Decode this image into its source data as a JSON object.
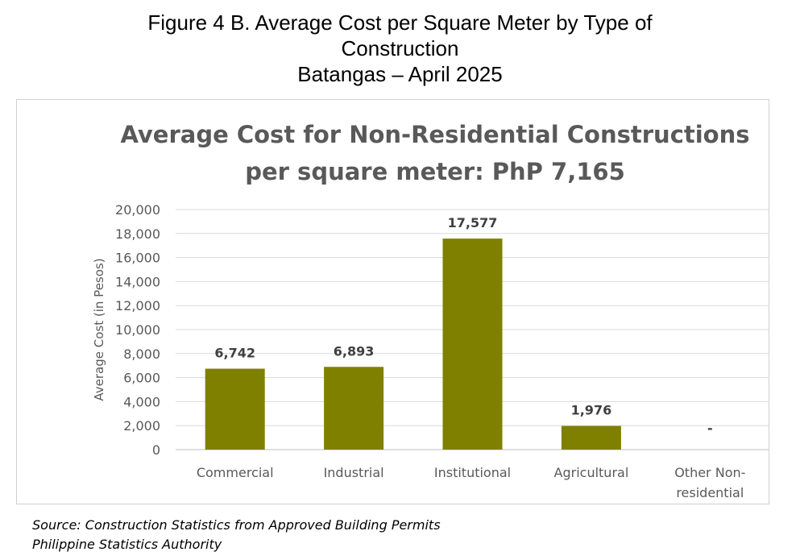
{
  "figure": {
    "title_line1": "Figure 4 B. Average Cost per Square Meter by Type of",
    "title_line2": "Construction",
    "title_line3": "Batangas – April 2025"
  },
  "chart_data": {
    "type": "bar",
    "title_line1": "Average Cost for Non-Residential Constructions",
    "title_line2": "per square meter: PhP 7,165",
    "ylabel": "Average Cost (in Pesos)",
    "xlabel": "",
    "ylim": [
      0,
      20000
    ],
    "yticks": [
      0,
      2000,
      4000,
      6000,
      8000,
      10000,
      12000,
      14000,
      16000,
      18000,
      20000
    ],
    "ytick_labels": [
      "0",
      "2,000",
      "4,000",
      "6,000",
      "8,000",
      "10,000",
      "12,000",
      "14,000",
      "16,000",
      "18,000",
      "20,000"
    ],
    "categories": [
      [
        "Commercial"
      ],
      [
        "Industrial"
      ],
      [
        "Institutional"
      ],
      [
        "Agricultural"
      ],
      [
        "Other Non-",
        "residential"
      ]
    ],
    "values": [
      6742,
      6893,
      17577,
      1976,
      null
    ],
    "data_labels": [
      "6,742",
      "6,893",
      "17,577",
      "1,976",
      "-"
    ],
    "bar_color": "#808000",
    "grid": true,
    "legend": "none"
  },
  "source": {
    "line1": "Source: Construction Statistics from Approved Building Permits",
    "line2": "Philippine Statistics Authority"
  }
}
